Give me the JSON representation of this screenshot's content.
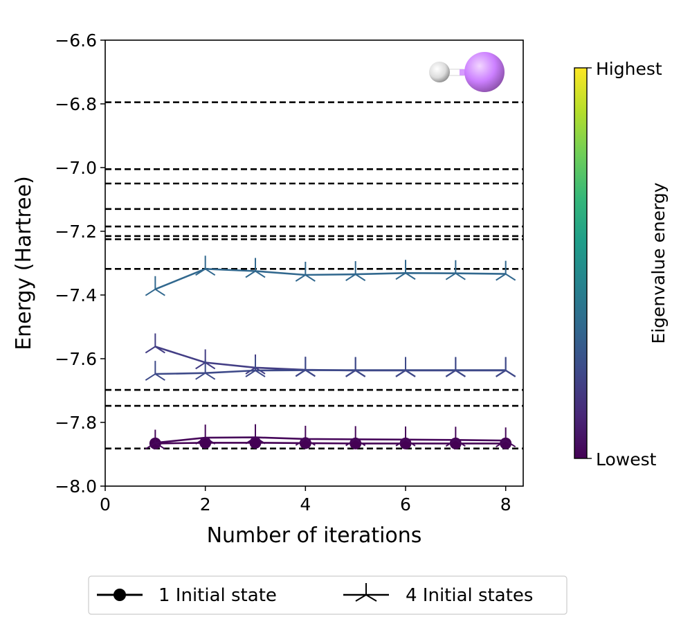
{
  "chart_data": {
    "type": "line",
    "title": "",
    "xlabel": "Number of iterations",
    "ylabel": "Energy (Hartree)",
    "xlim": [
      0,
      8.35
    ],
    "ylim": [
      -8.0,
      -6.6
    ],
    "xticks": [
      0,
      2,
      4,
      6,
      8
    ],
    "xtick_labels": [
      "0",
      "2",
      "4",
      "6",
      "8"
    ],
    "yticks": [
      -8.0,
      -7.8,
      -7.6,
      -7.4,
      -7.2,
      -7.0,
      -6.8,
      -6.6
    ],
    "ytick_labels": [
      "−8.0",
      "−7.8",
      "−7.6",
      "−7.4",
      "−7.2",
      "−7.0",
      "−6.8",
      "−6.6"
    ],
    "reference_lines": {
      "style": "dashed",
      "color": "#000000",
      "y_values": [
        -6.795,
        -7.005,
        -7.05,
        -7.13,
        -7.185,
        -7.215,
        -7.225,
        -7.318,
        -7.698,
        -7.748,
        -7.882
      ]
    },
    "series": [
      {
        "name": "1 Initial state",
        "marker": "circle",
        "color": "#440154",
        "x": [
          1,
          2,
          3,
          4,
          5,
          6,
          7,
          8
        ],
        "y": [
          -7.866,
          -7.864,
          -7.864,
          -7.865,
          -7.866,
          -7.866,
          -7.866,
          -7.866
        ]
      },
      {
        "name": "4 Initial states (state 1)",
        "marker": "tri_up",
        "color": "#46075a",
        "x": [
          1,
          2,
          3,
          4,
          5,
          6,
          7,
          8
        ],
        "y": [
          -7.864,
          -7.848,
          -7.847,
          -7.852,
          -7.853,
          -7.854,
          -7.855,
          -7.857
        ]
      },
      {
        "name": "4 Initial states (state 2)",
        "marker": "tri_up",
        "color": "#433e85",
        "x": [
          1,
          2,
          3,
          4,
          5,
          6,
          7,
          8
        ],
        "y": [
          -7.562,
          -7.612,
          -7.628,
          -7.635,
          -7.637,
          -7.637,
          -7.637,
          -7.637
        ]
      },
      {
        "name": "4 Initial states (state 3)",
        "marker": "tri_up",
        "color": "#3e4a89",
        "x": [
          1,
          2,
          3,
          4,
          5,
          6,
          7,
          8
        ],
        "y": [
          -7.648,
          -7.645,
          -7.637,
          -7.636,
          -7.636,
          -7.636,
          -7.636,
          -7.636
        ]
      },
      {
        "name": "4 Initial states (state 4)",
        "marker": "tri_up",
        "color": "#31688e",
        "x": [
          1,
          2,
          3,
          4,
          5,
          6,
          7,
          8
        ],
        "y": [
          -7.382,
          -7.318,
          -7.325,
          -7.337,
          -7.335,
          -7.331,
          -7.332,
          -7.334
        ]
      }
    ],
    "colorbar": {
      "label": "Eigenvalue energy",
      "colormap": "viridis",
      "colors": [
        "#440154",
        "#482878",
        "#3e4989",
        "#31688e",
        "#26828e",
        "#1f9e89",
        "#35b779",
        "#6ece58",
        "#b5de2b",
        "#fde725"
      ],
      "top_label": "Highest",
      "bottom_label": "Lowest"
    },
    "legend": {
      "position": "bottom-center",
      "entries": [
        {
          "label": "1 Initial state",
          "marker": "circle"
        },
        {
          "label": "4 Initial states",
          "marker": "tri_up"
        }
      ]
    },
    "inset": {
      "name": "LiH molecule",
      "atom_colors": [
        "#ffffff",
        "#cc80ff"
      ]
    }
  }
}
